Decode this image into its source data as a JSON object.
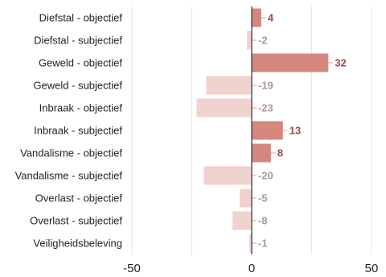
{
  "chart_data": {
    "type": "bar",
    "orientation": "horizontal",
    "categories": [
      "Diefstal - objectief",
      "Diefstal - subjectief",
      "Geweld - objectief",
      "Geweld - subjectief",
      "Inbraak - objectief",
      "Inbraak - subjectief",
      "Vandalisme - objectief",
      "Vandalisme - subjectief",
      "Overlast - objectief",
      "Overlast - subjectief",
      "Veiligheidsbeleving"
    ],
    "values": [
      4,
      -2,
      32,
      -19,
      -23,
      13,
      8,
      -20,
      -5,
      -8,
      -1
    ],
    "value_labels": [
      "4",
      "-2",
      "32",
      "-19",
      "-23",
      "13",
      "8",
      "-20",
      "-5",
      "-8",
      "-1"
    ],
    "xlim": [
      -50,
      50
    ],
    "xticks": [
      -50,
      0,
      50
    ],
    "xtick_labels": [
      "-50",
      "0",
      "50"
    ],
    "grid": true,
    "legend": "none",
    "colors": {
      "positive_bar": "#d4877e",
      "negative_bar": "#f0d2cf",
      "positive_label": "#9b4a42",
      "negative_label": "#a99a98",
      "zero_line": "#333333",
      "grid": "#e6e6e6",
      "leader": "#c9a9a5"
    }
  }
}
